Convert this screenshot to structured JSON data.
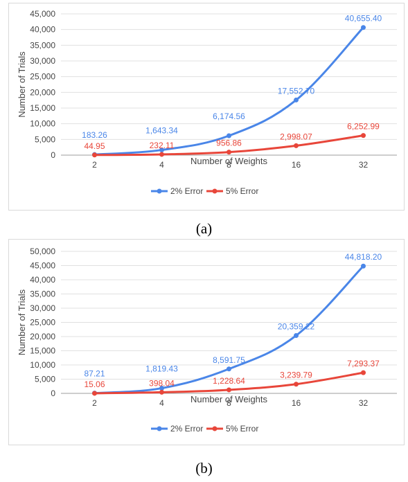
{
  "colors": {
    "series_2pct": "#4a86e8",
    "series_5pct": "#e8463a",
    "grid": "#e0e0e0",
    "axis": "#9e9e9e"
  },
  "captions": {
    "a": "(a)",
    "b": "(b)"
  },
  "chart_data": [
    {
      "type": "line",
      "categories": [
        "2",
        "4",
        "8",
        "16",
        "32"
      ],
      "xlabel": "Number of Weights",
      "ylabel": "Number of Trials",
      "ylim": [
        0,
        45000
      ],
      "yticks": [
        "0",
        "5,000",
        "10,000",
        "15,000",
        "20,000",
        "25,000",
        "30,000",
        "35,000",
        "40,000",
        "45,000"
      ],
      "grid": true,
      "legend_position": "bottom",
      "series": [
        {
          "name": "2% Error",
          "values": [
            183.26,
            1643.34,
            6174.56,
            17552.7,
            40655.4
          ],
          "labels": [
            "183.26",
            "1,643.34",
            "6,174.56",
            "17,552.70",
            "40,655.40"
          ]
        },
        {
          "name": "5% Error",
          "values": [
            44.95,
            232.11,
            956.86,
            2998.07,
            6252.99
          ],
          "labels": [
            "44.95",
            "232.11",
            "956.86",
            "2,998.07",
            "6,252.99"
          ]
        }
      ]
    },
    {
      "type": "line",
      "categories": [
        "2",
        "4",
        "8",
        "16",
        "32"
      ],
      "xlabel": "Number of Weights",
      "ylabel": "Number of Trials",
      "ylim": [
        0,
        50000
      ],
      "yticks": [
        "0",
        "5,000",
        "10,000",
        "15,000",
        "20,000",
        "25,000",
        "30,000",
        "35,000",
        "40,000",
        "45,000",
        "50,000"
      ],
      "grid": true,
      "legend_position": "bottom",
      "series": [
        {
          "name": "2% Error",
          "values": [
            87.21,
            1819.43,
            8591.75,
            20359.22,
            44818.2
          ],
          "labels": [
            "87.21",
            "1,819.43",
            "8,591.75",
            "20,359.22",
            "44,818.20"
          ]
        },
        {
          "name": "5% Error",
          "values": [
            15.06,
            398.04,
            1228.64,
            3239.79,
            7293.37
          ],
          "labels": [
            "15.06",
            "398.04",
            "1,228.64",
            "3,239.79",
            "7,293.37"
          ]
        }
      ]
    }
  ]
}
